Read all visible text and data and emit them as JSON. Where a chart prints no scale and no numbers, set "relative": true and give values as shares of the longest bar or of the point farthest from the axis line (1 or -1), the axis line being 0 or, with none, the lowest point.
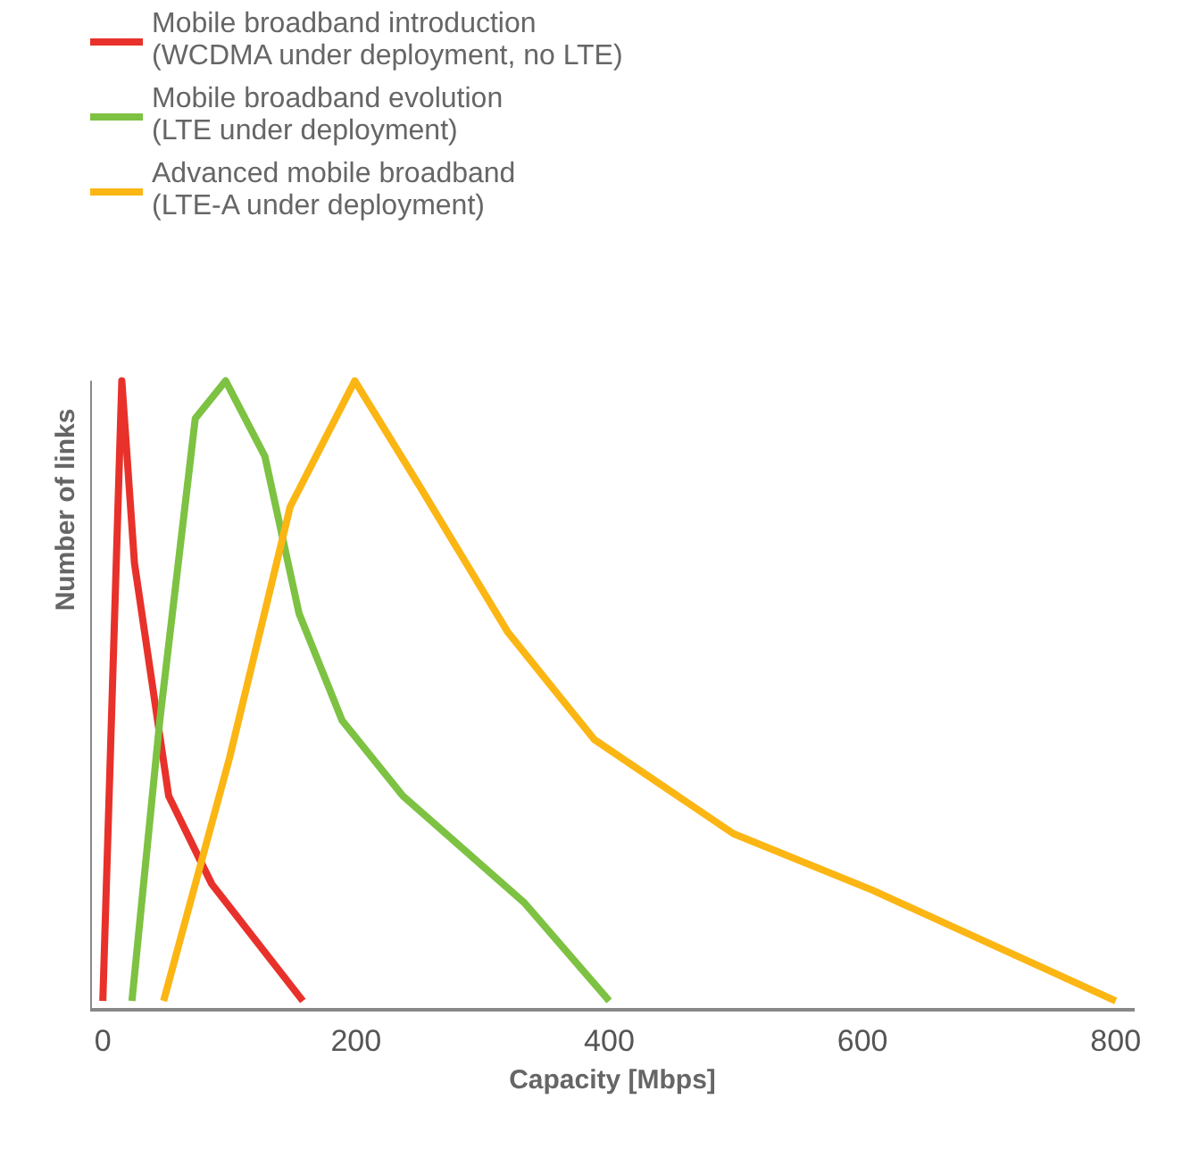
{
  "chart_data": {
    "type": "line",
    "xlabel": "Capacity [Mbps]",
    "ylabel": "Number of links",
    "relative": true,
    "xlim": [
      -10,
      815
    ],
    "xticks": [
      0,
      200,
      400,
      600,
      800
    ],
    "grid": false,
    "legend": "top left",
    "marker": "none",
    "line_style": "solid",
    "series": [
      {
        "name": "Mobile broadband introduction\n(WCDMA under deployment, no LTE)",
        "color": "#e8312a",
        "x": [
          0,
          15,
          25,
          52,
          86,
          158
        ],
        "values": [
          0.014,
          1,
          0.71,
          0.34,
          0.2,
          0.014
        ]
      },
      {
        "name": "Mobile broadband evolution\n(LTE under deployment)",
        "color": "#7dc242",
        "x": [
          23,
          45,
          73,
          97,
          128,
          155,
          189,
          237,
          333,
          400
        ],
        "values": [
          0.014,
          0.46,
          0.94,
          1,
          0.88,
          0.63,
          0.46,
          0.34,
          0.17,
          0.014
        ]
      },
      {
        "name": "Advanced mobile broadband\n(LTE-A under deployment)",
        "color": "#fbb614",
        "x": [
          48,
          100,
          148,
          199,
          251,
          320,
          388,
          498,
          608,
          800
        ],
        "values": [
          0.014,
          0.4,
          0.8,
          1,
          0.83,
          0.6,
          0.43,
          0.28,
          0.19,
          0.014
        ]
      }
    ]
  }
}
